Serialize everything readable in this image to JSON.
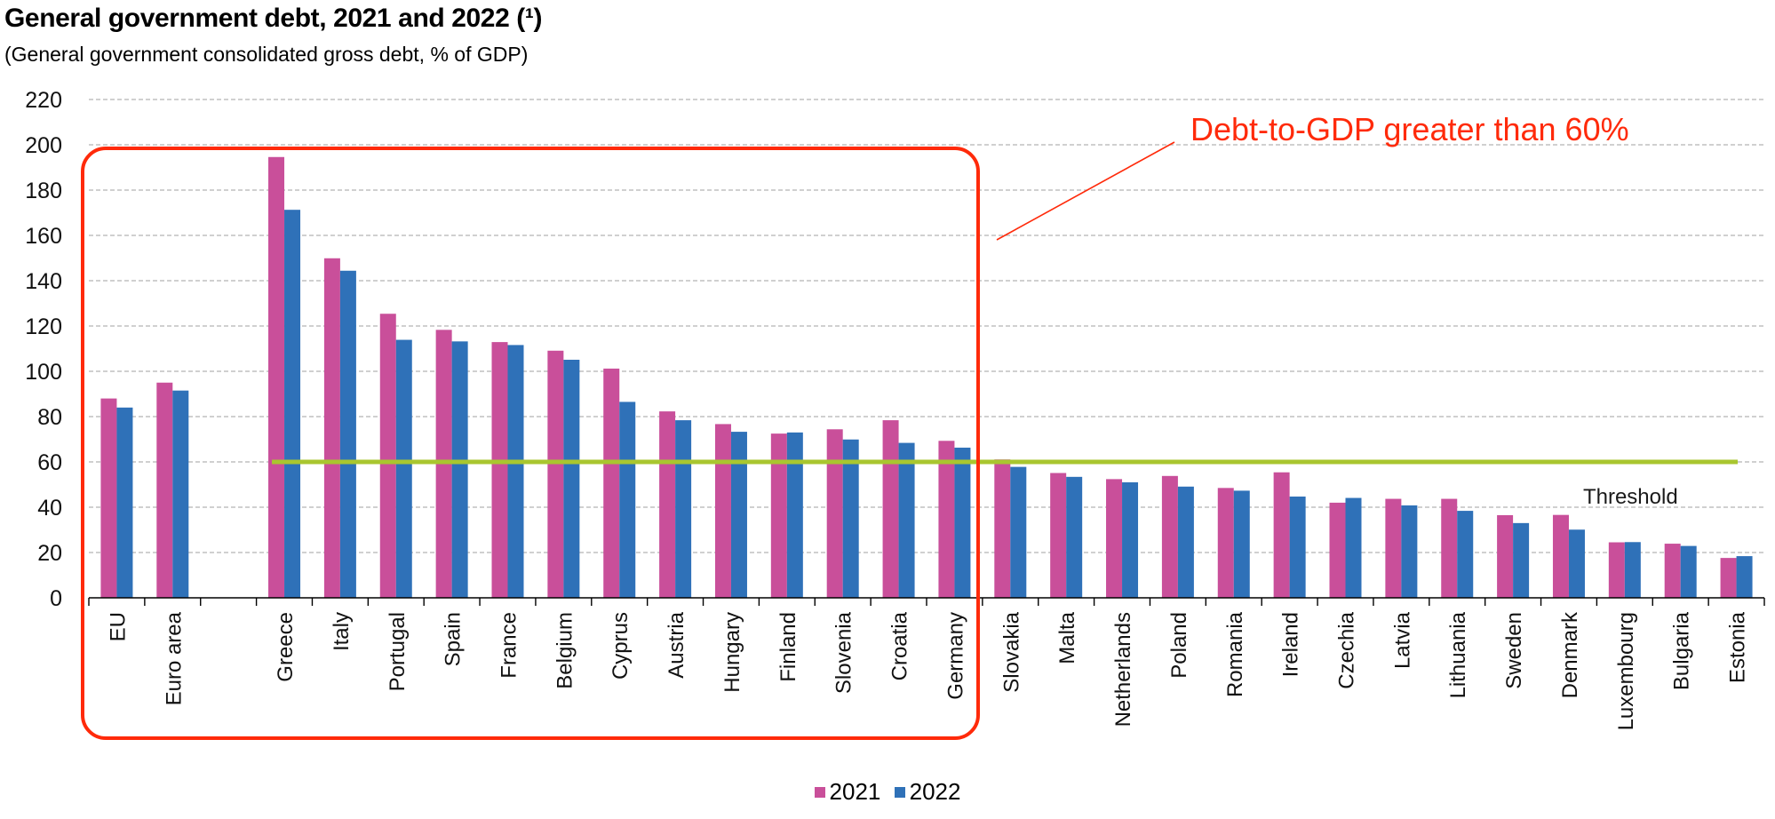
{
  "title": "General government debt, 2021 and 2022 (¹)",
  "subtitle": "(General  government  consolidated gross debt, % of GDP)",
  "colors": {
    "series_2021": "#c94f9a",
    "series_2022": "#2f71b8",
    "threshold": "#a9c62f",
    "annotation": "#ff2a0a",
    "grid": "#b3b3b3"
  },
  "annotation": {
    "label": "Debt-to-GDP greater than 60%",
    "threshold_label": "Threshold",
    "threshold_value": 60
  },
  "chart_data": {
    "type": "bar",
    "title": "General government debt, 2021 and 2022 (¹)",
    "subtitle": "(General  government  consolidated gross debt, % of GDP)",
    "categories": [
      "EU",
      "Euro area",
      "",
      "Greece",
      "Italy",
      "Portugal",
      "Spain",
      "France",
      "Belgium",
      "Cyprus",
      "Austria",
      "Hungary",
      "Finland",
      "Slovenia",
      "Croatia",
      "Germany",
      "Slovakia",
      "Malta",
      "Netherlands",
      "Poland",
      "Romania",
      "Ireland",
      "Czechia",
      "Latvia",
      "Lithuania",
      "Sweden",
      "Denmark",
      "Luxembourg",
      "Bulgaria",
      "Estonia"
    ],
    "series": [
      {
        "name": "2021",
        "values": [
          88,
          95,
          null,
          194.6,
          149.9,
          125.4,
          118.3,
          112.9,
          109.1,
          101.2,
          82.3,
          76.7,
          72.5,
          74.4,
          78.4,
          69.3,
          61.1,
          55.1,
          52.4,
          53.8,
          48.5,
          55.4,
          42,
          43.7,
          43.7,
          36.5,
          36.6,
          24.5,
          23.9,
          17.6
        ]
      },
      {
        "name": "2022",
        "values": [
          84,
          91.5,
          null,
          171.3,
          144.4,
          113.9,
          113.2,
          111.6,
          105.1,
          86.5,
          78.4,
          73.3,
          73,
          69.9,
          68.4,
          66.3,
          57.8,
          53.4,
          51,
          49.1,
          47.3,
          44.7,
          44.1,
          40.8,
          38.4,
          33,
          30.1,
          24.6,
          22.9,
          18.4
        ]
      }
    ],
    "ylim": [
      0,
      220
    ],
    "yticks": [
      0,
      20,
      40,
      60,
      80,
      100,
      120,
      140,
      160,
      180,
      200,
      220
    ],
    "grid": true,
    "legend_position": "bottom-center"
  }
}
